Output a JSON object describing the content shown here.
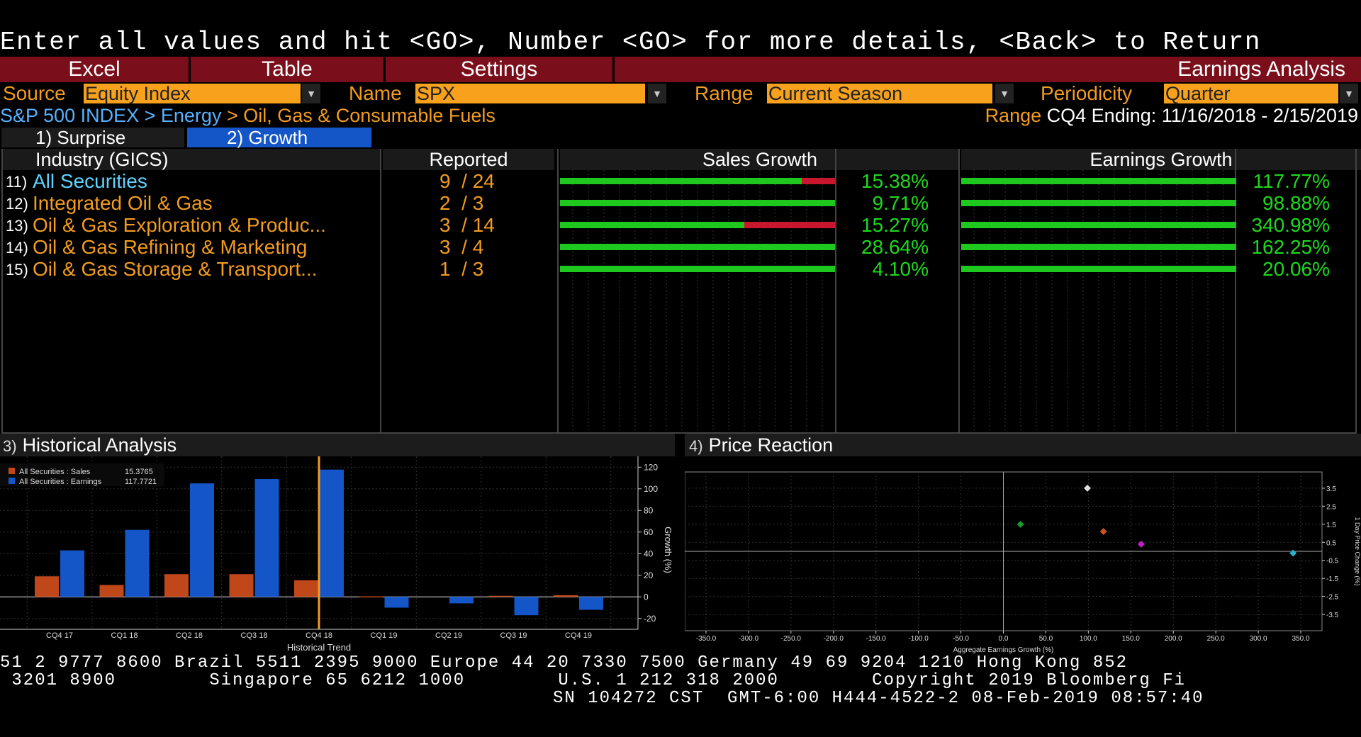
{
  "instruction": "Enter all values and hit <GO>, Number <GO> for more details, <Back> to Return",
  "menu": {
    "excel": "Excel",
    "table": "Table",
    "settings": "Settings",
    "title": "Earnings Analysis"
  },
  "selectors": {
    "source_label": "Source",
    "source_value": "Equity Index",
    "name_label": "Name",
    "name_value": "SPX",
    "range_label": "Range",
    "range_value": "Current Season",
    "periodicity_label": "Periodicity",
    "periodicity_value": "Quarter"
  },
  "breadcrumb": {
    "index": "S&P 500 INDEX",
    "sep1": " > ",
    "sector": "Energy",
    "sep2": " > ",
    "industry": "Oil, Gas & Consumable Fuels"
  },
  "range_info": {
    "label": "Range",
    "text": "CQ4 Ending: 11/16/2018 - 2/15/2019"
  },
  "tabs": {
    "surprise": "1) Surprise",
    "growth": "2) Growth"
  },
  "table": {
    "headers": {
      "industry": "Industry (GICS)",
      "reported": "Reported",
      "sales": "Sales Growth",
      "earnings": "Earnings Growth"
    },
    "rows": [
      {
        "num": "11)",
        "name": "All Securities",
        "reported": "9  / 24",
        "sales_pct": "15.38%",
        "earnings_pct": "117.77%",
        "sales_green_frac": 0.88,
        "earnings_green_frac": 1.0,
        "highlight": true
      },
      {
        "num": "12)",
        "name": "Integrated Oil & Gas",
        "reported": "2  / 3",
        "sales_pct": "9.71%",
        "earnings_pct": "98.88%",
        "sales_green_frac": 1.0,
        "earnings_green_frac": 1.0,
        "highlight": false
      },
      {
        "num": "13)",
        "name": "Oil & Gas Exploration & Produc...",
        "reported": "3  / 14",
        "sales_pct": "15.27%",
        "earnings_pct": "340.98%",
        "sales_green_frac": 0.67,
        "earnings_green_frac": 1.0,
        "highlight": false
      },
      {
        "num": "14)",
        "name": "Oil & Gas Refining & Marketing",
        "reported": "3  / 4",
        "sales_pct": "28.64%",
        "earnings_pct": "162.25%",
        "sales_green_frac": 1.0,
        "earnings_green_frac": 1.0,
        "highlight": false
      },
      {
        "num": "15)",
        "name": "Oil & Gas Storage & Transport...",
        "reported": "1  / 3",
        "sales_pct": "4.10%",
        "earnings_pct": "20.06%",
        "sales_green_frac": 1.0,
        "earnings_green_frac": 1.0,
        "highlight": false
      }
    ]
  },
  "historical": {
    "header_num": "3)",
    "header_title": "Historical Analysis",
    "legend": [
      {
        "label": "All Securities : Sales",
        "value": "15.3765",
        "color": "#c0471a"
      },
      {
        "label": "All Securities : Earnings",
        "value": "117.7721",
        "color": "#1455c8"
      }
    ],
    "xlabel": "Historical Trend",
    "ylabel": "Growth (%)"
  },
  "price_reaction": {
    "header_num": "4)",
    "header_title": "Price Reaction",
    "xlabel": "Aggregate Earnings Growth (%)",
    "ylabel": "1 Day Price Change (%)"
  },
  "chart_data": [
    {
      "type": "bar",
      "categories": [
        "CQ4 17",
        "CQ1 18",
        "CQ2 18",
        "CQ3 18",
        "CQ4 18",
        "CQ1 19",
        "CQ2 19",
        "CQ3 19",
        "CQ4 19"
      ],
      "series": [
        {
          "name": "All Securities : Sales",
          "values": [
            19,
            11,
            21,
            21,
            15.38,
            0.5,
            0,
            1,
            1.5
          ],
          "color": "#c0471a"
        },
        {
          "name": "All Securities : Earnings",
          "values": [
            43,
            62,
            105,
            109,
            117.77,
            -10,
            -6,
            -17,
            -12
          ],
          "color": "#1455c8"
        }
      ],
      "xlabel": "Historical Trend",
      "ylabel": "Growth (%)",
      "ylim": [
        -30,
        130
      ],
      "yticks": [
        -20,
        0,
        20,
        40,
        60,
        80,
        100,
        120
      ],
      "current_marker": "CQ4 18",
      "grid": true
    },
    {
      "type": "scatter",
      "points": [
        {
          "x": 20.06,
          "y": 1.5,
          "color": "#1a9a2a"
        },
        {
          "x": 98.88,
          "y": 3.5,
          "color": "#dddddd"
        },
        {
          "x": 117.77,
          "y": 1.1,
          "color": "#c8561a"
        },
        {
          "x": 162.25,
          "y": 0.4,
          "color": "#c020c8"
        },
        {
          "x": 340.98,
          "y": -0.1,
          "color": "#2ab0c8"
        }
      ],
      "xlabel": "Aggregate Earnings Growth (%)",
      "ylabel": "1 Day Price Change (%)",
      "xlim": [
        -375,
        375
      ],
      "ylim": [
        -4.4,
        4.4
      ],
      "xticks": [
        -350,
        -300,
        -250,
        -200,
        -150,
        -100,
        -50,
        0,
        50,
        100,
        150,
        200,
        250,
        300,
        350
      ],
      "yticks": [
        -3.5,
        -2.5,
        -1.5,
        -0.5,
        0.5,
        1.5,
        2.5,
        3.5
      ],
      "grid": true
    }
  ],
  "footer": {
    "line1": "51 2 9777 8600 Brazil 5511 2395 9000 Europe 44 20 7330 7500 Germany 49 69 9204 1210 Hong Kong 852",
    "line2": " 3201 8900        Singapore 65 6212 1000        U.S. 1 212 318 2000        Copyright 2019 Bloomberg Fi",
    "line3": "SN 104272 CST  GMT-6:00 H444-4522-2 08-Feb-2019 08:57:40"
  }
}
